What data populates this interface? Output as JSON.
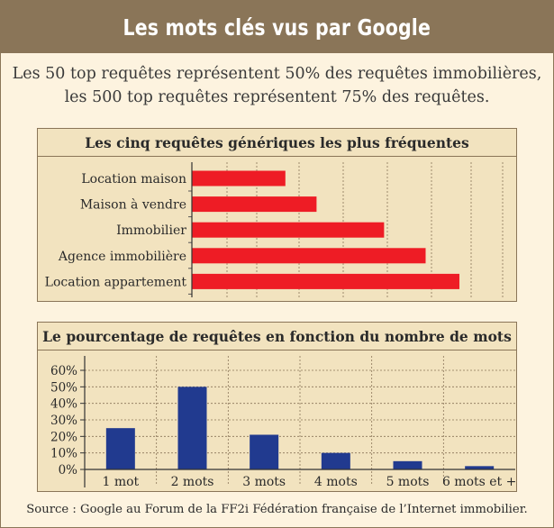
{
  "header": {
    "title": "Les mots clés vus par Google"
  },
  "intro": {
    "line1": "Les 50 top requêtes représentent 50% des requêtes immobilières,",
    "line2": "les 500 top requêtes représentent 75% des requêtes."
  },
  "source": "Source : Google au Forum de la FF2i Fédération française de l’Internet immobilier.",
  "colors": {
    "header": "#8a7558",
    "page_bg": "#fdf3df",
    "panel_bg": "#f2e3bf",
    "bar_red": "#ee1c25",
    "bar_blue": "#213a8f"
  },
  "chart_data": [
    {
      "type": "bar",
      "orientation": "horizontal",
      "title": "Les cinq requêtes génériques les plus fréquentes",
      "categories": [
        "Location maison",
        "Maison à vendre",
        "Immobilier",
        "Agence immobilière",
        "Location appartement"
      ],
      "values": [
        36,
        48,
        74,
        90,
        103
      ],
      "value_max": 120,
      "value_axis_labels": "none",
      "grid": "vertical dashed lines"
    },
    {
      "type": "bar",
      "title": "Le pourcentage de requêtes en fonction du nombre de mots",
      "categories": [
        "1 mot",
        "2 mots",
        "3 mots",
        "4 mots",
        "5 mots",
        "6 mots et +"
      ],
      "values": [
        25,
        50,
        21,
        10,
        5,
        2
      ],
      "yticks": [
        "0%",
        "10%",
        "20%",
        "30%",
        "40%",
        "50%",
        "60%"
      ],
      "ylim": [
        0,
        60
      ],
      "grid": "horizontal and vertical dashed lines"
    }
  ]
}
